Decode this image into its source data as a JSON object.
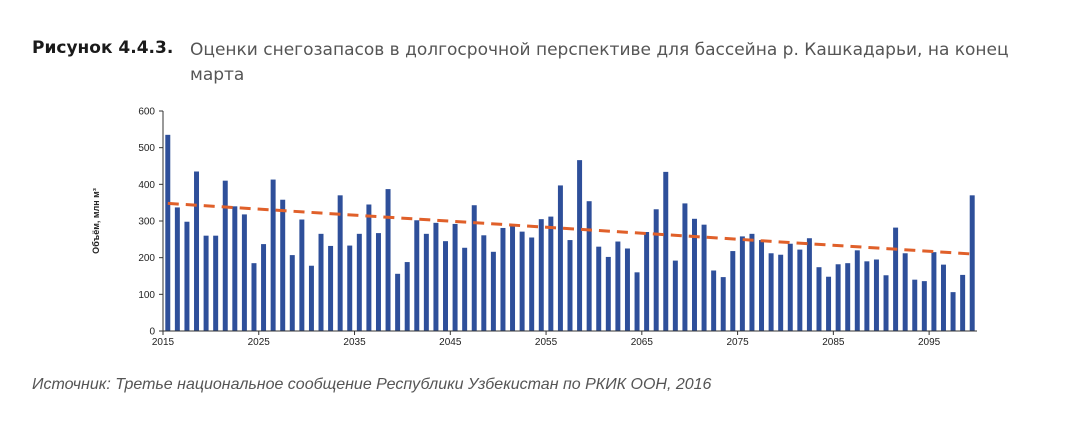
{
  "figure": {
    "label": "Рисунок 4.4.3.",
    "title": "Оценки снегозапасов в долгосрочной перспективе для бассейна р. Кашкадарьи, на конец марта"
  },
  "source": "Источник: Третье национальное сообщение Республики Узбекистан по РКИК ООН, 2016",
  "colors": {
    "bar": "#2e4f9a",
    "trend": "#e0602a",
    "axis": "#333333"
  },
  "chart_data": {
    "type": "bar",
    "ylabel": "Объём, млн м³",
    "ylim": [
      0,
      600
    ],
    "yticks": [
      0,
      100,
      200,
      300,
      400,
      500,
      600
    ],
    "xticks": [
      "2015",
      "2025",
      "2035",
      "2045",
      "2055",
      "2065",
      "2075",
      "2085",
      "2095"
    ],
    "x_start": 2015,
    "x_end": 2099,
    "values": [
      535,
      337,
      298,
      435,
      260,
      260,
      410,
      340,
      318,
      185,
      237,
      413,
      358,
      207,
      304,
      178,
      265,
      232,
      370,
      233,
      265,
      345,
      267,
      387,
      156,
      188,
      302,
      265,
      295,
      245,
      292,
      227,
      343,
      261,
      216,
      281,
      290,
      271,
      255,
      305,
      312,
      397,
      248,
      466,
      354,
      230,
      202,
      244,
      225,
      160,
      270,
      332,
      434,
      192,
      348,
      306,
      290,
      165,
      147,
      218,
      258,
      265,
      248,
      212,
      208,
      238,
      222,
      253,
      174,
      148,
      182,
      185,
      220,
      190,
      195,
      152,
      282,
      212,
      140,
      136,
      215,
      181,
      106,
      153,
      370
    ],
    "trend": {
      "name": "",
      "start": 348,
      "end": 210
    }
  }
}
